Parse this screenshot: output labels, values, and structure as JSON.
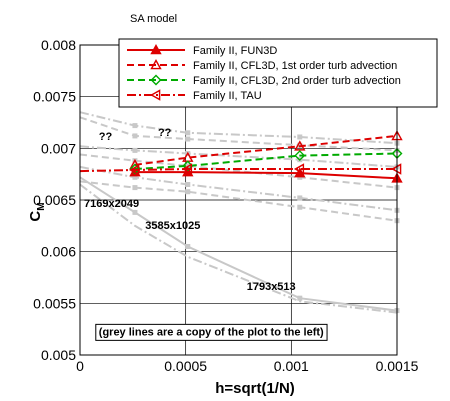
{
  "chart_data": {
    "type": "line",
    "panel_label": "SA model",
    "xlabel": "h=sqrt(1/N)",
    "ylabel": "C",
    "ylabel_sub": "M",
    "xlim": [
      0,
      0.0015
    ],
    "ylim": [
      0.005,
      0.008
    ],
    "x_ticks": [
      0,
      0.0005,
      0.001,
      0.0015
    ],
    "x_tick_labels": [
      "0",
      "0.0005",
      "0.001",
      "0.0015"
    ],
    "y_ticks": [
      0.005,
      0.0055,
      0.006,
      0.0065,
      0.007,
      0.0075,
      0.008
    ],
    "y_tick_labels": [
      "0.005",
      "0.0055",
      "0.006",
      "0.0065",
      "0.007",
      "0.0075",
      "0.008"
    ],
    "grid": true,
    "legend_position": "top-right",
    "series": [
      {
        "name": "Family II, FUN3D",
        "color": "#dd0000",
        "dash": "solid",
        "marker": "triangle-up",
        "x": [
          0.00026,
          0.00051,
          0.00104,
          0.0015
        ],
        "y": [
          0.00677,
          0.00677,
          0.00676,
          0.00671
        ]
      },
      {
        "name": "Family II, CFL3D, 1st order turb advection",
        "color": "#dd0000",
        "dash": "dashed",
        "marker": "triangle-up-open",
        "x": [
          0.00026,
          0.00051,
          0.00104,
          0.0015
        ],
        "y": [
          0.00684,
          0.00691,
          0.00702,
          0.00712
        ]
      },
      {
        "name": "Family II, CFL3D, 2nd order turb advection",
        "color": "#00aa00",
        "dash": "dashed",
        "marker": "diamond-open",
        "x": [
          0.00026,
          0.00051,
          0.00104,
          0.0015
        ],
        "y": [
          0.0068,
          0.00683,
          0.00693,
          0.00695
        ]
      },
      {
        "name": "Family II, TAU",
        "color": "#dd0000",
        "dash": "dash-dot",
        "marker": "triangle-left-open",
        "x": [
          0,
          0.00026,
          0.00051,
          0.00104,
          0.0015
        ],
        "y": [
          0.00678,
          0.00679,
          0.0068,
          0.0068,
          0.0068
        ]
      }
    ],
    "grey_reference_lines": [
      {
        "x": [
          0,
          0.00026,
          0.00051,
          0.00104,
          0.0015
        ],
        "y": [
          0.00735,
          0.00722,
          0.00715,
          0.00711,
          0.00705
        ],
        "dash": "dash-dot",
        "marker": "square"
      },
      {
        "x": [
          0,
          0.00026,
          0.00051,
          0.00104,
          0.0015
        ],
        "y": [
          0.0073,
          0.00712,
          0.00709,
          0.00703,
          0.00698
        ],
        "dash": "dashed",
        "marker": "square"
      },
      {
        "x": [
          0,
          0.00026,
          0.00051,
          0.00104,
          0.0015
        ],
        "y": [
          0.00702,
          0.00698,
          0.00695,
          0.00689,
          0.00682
        ],
        "dash": "dash-dot",
        "marker": "square"
      },
      {
        "x": [
          0,
          0.00026,
          0.00051,
          0.00104,
          0.0015
        ],
        "y": [
          0.00694,
          0.00688,
          0.00683,
          0.00672,
          0.00662
        ],
        "dash": "dashed",
        "marker": "square"
      },
      {
        "x": [
          0,
          0.00026,
          0.00051,
          0.00104,
          0.0015
        ],
        "y": [
          0.00682,
          0.00672,
          0.00665,
          0.00652,
          0.0064
        ],
        "dash": "dash-dot",
        "marker": "triangle-up"
      },
      {
        "x": [
          0,
          0.00026,
          0.00051,
          0.00104,
          0.0015
        ],
        "y": [
          0.00668,
          0.00662,
          0.00658,
          0.00643,
          0.0063
        ],
        "dash": "dashed",
        "marker": "diamond"
      },
      {
        "x": [
          0,
          0.00026,
          0.00051,
          0.00104,
          0.0015
        ],
        "y": [
          0.00672,
          0.00638,
          0.00605,
          0.00555,
          0.00543
        ],
        "dash": "solid",
        "marker": "square"
      },
      {
        "x": [
          0,
          0.00026,
          0.00051,
          0.00104,
          0.0015
        ],
        "y": [
          0.00665,
          0.00625,
          0.00595,
          0.00552,
          0.00541
        ],
        "dash": "dash-dot",
        "marker": "none"
      }
    ],
    "annotations": [
      {
        "text": "7169x2049",
        "x": 0.0,
        "y": 0.00643
      },
      {
        "text": "3585x1025",
        "x": 0.00029,
        "y": 0.00622
      },
      {
        "text": "1793x513",
        "x": 0.00077,
        "y": 0.00563
      },
      {
        "text": "(grey lines are a copy of the plot to the left)",
        "x": 7e-05,
        "y": 0.00519,
        "boxed": true
      },
      {
        "text": "??",
        "x": 7e-05,
        "y": 0.00708,
        "color": "#c8c8c8"
      },
      {
        "text": "??",
        "x": 0.00035,
        "y": 0.00712,
        "color": "#c8c8c8"
      }
    ]
  }
}
